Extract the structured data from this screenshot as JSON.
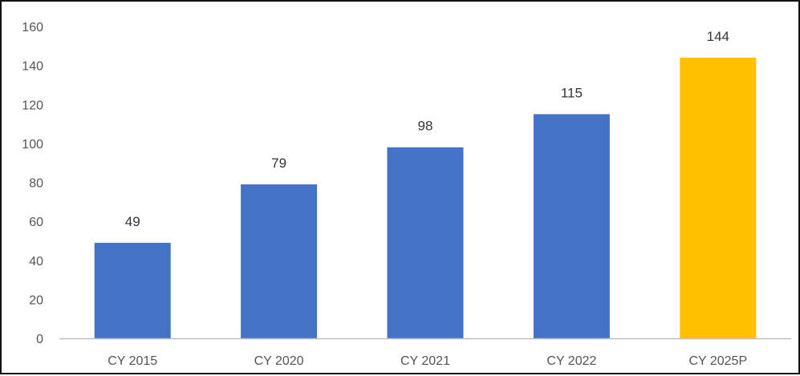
{
  "chart_data": {
    "type": "bar",
    "title": "",
    "xlabel": "",
    "ylabel": "",
    "categories": [
      "CY 2015",
      "CY 2020",
      "CY 2021",
      "CY 2022",
      "CY 2025P"
    ],
    "values": [
      49,
      79,
      98,
      115,
      144
    ],
    "value_labels": [
      "49",
      "79",
      "98",
      "115",
      "144"
    ],
    "yticks": [
      0,
      20,
      40,
      60,
      80,
      100,
      120,
      140,
      160
    ],
    "ytick_labels": [
      "0",
      "20",
      "40",
      "60",
      "80",
      "100",
      "120",
      "140",
      "160"
    ],
    "ylim": [
      0,
      160
    ],
    "grid": false,
    "legend": "none",
    "colors": {
      "bar": "#4472C4",
      "highlight_bar": "#FFC000",
      "axis": "#BFBFBF",
      "tick_text": "#555555",
      "data_label_text": "#333333",
      "frame": "#111111"
    },
    "highlight_categories": [
      "CY 2025P"
    ]
  }
}
